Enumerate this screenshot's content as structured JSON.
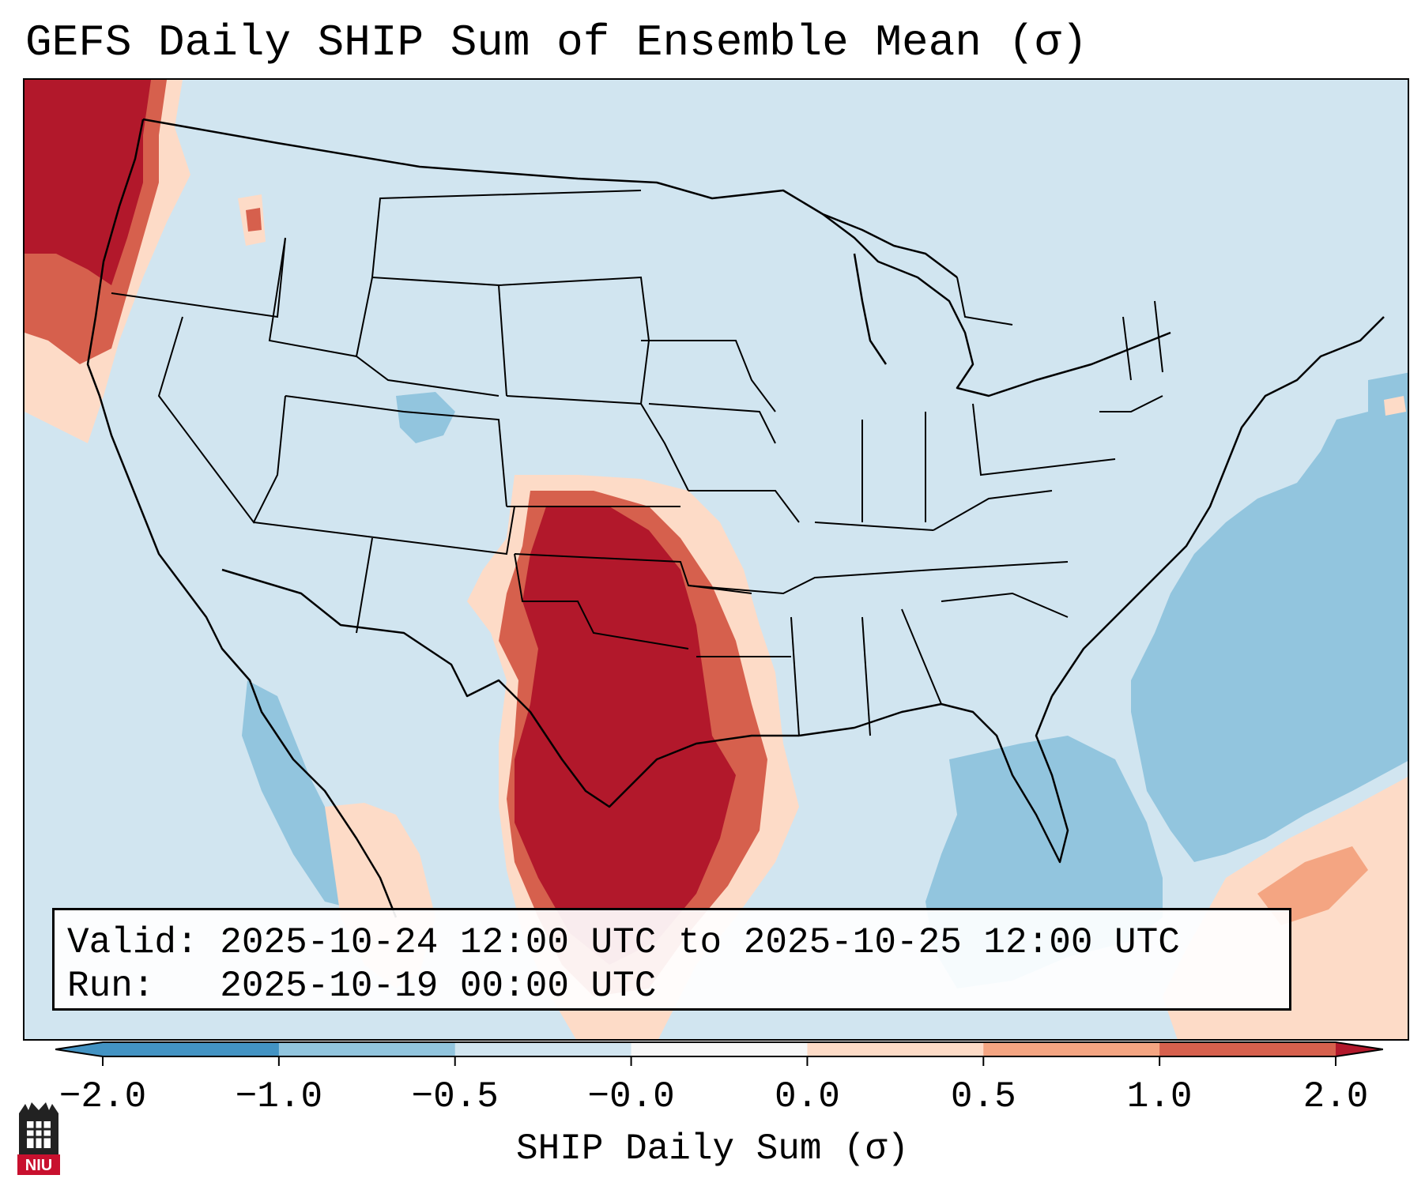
{
  "title": "GEFS Daily SHIP Sum of Ensemble Mean (σ)",
  "info": {
    "valid_label": "Valid:",
    "valid_value": "2025-10-24 12:00 UTC to 2025-10-25 12:00 UTC",
    "run_label": "Run:",
    "run_value": "2025-10-19 00:00 UTC"
  },
  "colorbar": {
    "label": "SHIP Daily Sum (σ)",
    "ticks": [
      "−2.0",
      "−1.0",
      "−0.5",
      "−0.0",
      "0.0",
      "0.5",
      "1.0",
      "2.0"
    ],
    "colors": [
      "#4393c3",
      "#92c5de",
      "#d1e5f0",
      "#f7f7f7",
      "#fddbc7",
      "#f4a582",
      "#d6604d",
      "#b2182b"
    ],
    "extend": "both"
  },
  "map": {
    "region": "Contiguous United States",
    "background_color": "#d1e5f0",
    "anomaly_areas": [
      {
        "region": "Pacific Northwest coast",
        "level": 2.0
      },
      {
        "region": "Southern Plains: Oklahoma and Texas",
        "level": 2.0
      },
      {
        "region": "Gulf of Mexico / Cuba / Hispaniola",
        "level": -1.0
      },
      {
        "region": "Western Atlantic off Southeast coast",
        "level": -0.5
      }
    ]
  },
  "logo": {
    "text": "NIU"
  }
}
